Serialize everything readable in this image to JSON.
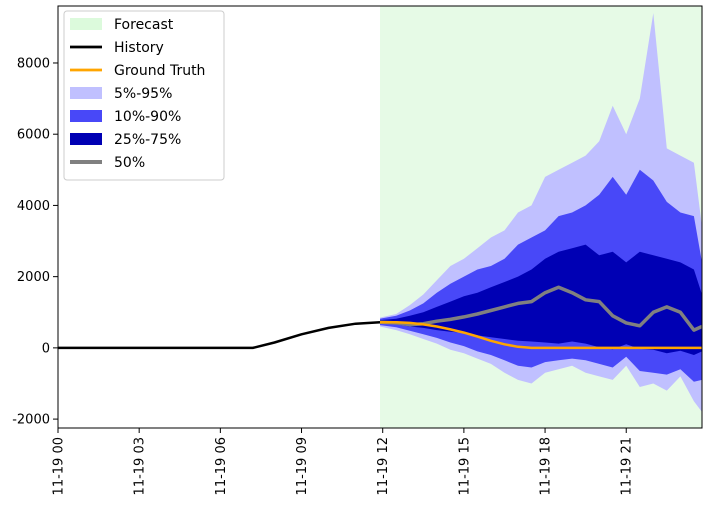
{
  "chart_data": {
    "type": "line",
    "title": "",
    "xlabel": "",
    "ylabel": "",
    "x_unit": "hours",
    "xlim": [
      0,
      23.8
    ],
    "ylim": [
      -2250,
      9600
    ],
    "grid": false,
    "legend_position": "top-left",
    "x_ticks": [
      {
        "value": 0,
        "label": "11-19 00"
      },
      {
        "value": 3,
        "label": "11-19 03"
      },
      {
        "value": 6,
        "label": "11-19 06"
      },
      {
        "value": 9,
        "label": "11-19 09"
      },
      {
        "value": 12,
        "label": "11-19 12"
      },
      {
        "value": 15,
        "label": "11-19 15"
      },
      {
        "value": 18,
        "label": "11-19 18"
      },
      {
        "value": 21,
        "label": "11-19 21"
      }
    ],
    "y_ticks": [
      {
        "value": -2000,
        "label": "-2000"
      },
      {
        "value": 0,
        "label": "0"
      },
      {
        "value": 2000,
        "label": "2000"
      },
      {
        "value": 4000,
        "label": "4000"
      },
      {
        "value": 6000,
        "label": "6000"
      },
      {
        "value": 8000,
        "label": "8000"
      }
    ],
    "forecast_region": {
      "name": "Forecast",
      "x_start": 11.9,
      "x_end": 23.8,
      "color": "#e6fae6"
    },
    "legend": [
      {
        "name": "Forecast",
        "kind": "patch",
        "color": "#dcfadc"
      },
      {
        "name": "History",
        "kind": "line",
        "color": "#000000"
      },
      {
        "name": "Ground Truth",
        "kind": "line",
        "color": "#ffa500"
      },
      {
        "name": "5%-95%",
        "kind": "patch",
        "color": "#c0c0ff"
      },
      {
        "name": "10%-90%",
        "kind": "patch",
        "color": "#4848f8"
      },
      {
        "name": "25%-75%",
        "kind": "patch",
        "color": "#0000b4"
      },
      {
        "name": "50%",
        "kind": "line",
        "color": "#808080"
      }
    ],
    "history": {
      "name": "History",
      "color": "#000000",
      "x": [
        0,
        1,
        2,
        3,
        4,
        5,
        6,
        7,
        7.2,
        8,
        9,
        10,
        11,
        11.9
      ],
      "y": [
        0,
        0,
        0,
        0,
        0,
        0,
        0,
        0,
        0,
        150,
        380,
        560,
        680,
        720
      ]
    },
    "ground_truth": {
      "name": "Ground Truth",
      "color": "#ffa500",
      "x": [
        11.9,
        12.5,
        13,
        13.5,
        14,
        14.5,
        15,
        15.5,
        16,
        16.5,
        17,
        17.5,
        18,
        19,
        20,
        21,
        22,
        23,
        23.8
      ],
      "y": [
        720,
        720,
        700,
        660,
        600,
        520,
        430,
        320,
        200,
        100,
        30,
        0,
        0,
        0,
        0,
        0,
        0,
        0,
        0
      ]
    },
    "bands_x": [
      11.9,
      12.5,
      13,
      13.5,
      14,
      14.5,
      15,
      15.5,
      16,
      16.5,
      17,
      17.5,
      18,
      18.5,
      19,
      19.5,
      20,
      20.5,
      21,
      21.5,
      22,
      22.5,
      23,
      23.5,
      23.8
    ],
    "band_5_95": {
      "name": "5%-95%",
      "color": "#c0c0ff",
      "lower": [
        600,
        500,
        380,
        250,
        120,
        -50,
        -150,
        -300,
        -450,
        -700,
        -900,
        -1000,
        -700,
        -600,
        -500,
        -700,
        -800,
        -900,
        -500,
        -1100,
        -1000,
        -1200,
        -800,
        -1500,
        -1800
      ],
      "upper": [
        850,
        950,
        1200,
        1500,
        1900,
        2300,
        2500,
        2800,
        3100,
        3300,
        3800,
        4000,
        4800,
        5000,
        5200,
        5400,
        5800,
        6800,
        6000,
        7000,
        9400,
        5600,
        5400,
        5200,
        3400
      ]
    },
    "band_10_90": {
      "name": "10%-90%",
      "color": "#4848f8",
      "lower": [
        640,
        580,
        480,
        380,
        280,
        150,
        50,
        -100,
        -200,
        -350,
        -500,
        -550,
        -400,
        -350,
        -300,
        -350,
        -450,
        -550,
        -250,
        -650,
        -700,
        -750,
        -600,
        -950,
        -900
      ],
      "upper": [
        820,
        900,
        1050,
        1250,
        1550,
        1800,
        2000,
        2200,
        2300,
        2500,
        2900,
        3100,
        3300,
        3700,
        3800,
        4000,
        4300,
        4800,
        4300,
        5000,
        4700,
        4100,
        3800,
        3700,
        2400
      ]
    },
    "band_25_75": {
      "name": "25%-75%",
      "color": "#0000b4",
      "lower": [
        680,
        660,
        600,
        560,
        500,
        450,
        420,
        350,
        300,
        250,
        200,
        180,
        150,
        120,
        180,
        120,
        20,
        -40,
        100,
        -30,
        -50,
        -150,
        -80,
        -200,
        -100
      ],
      "upper": [
        780,
        820,
        900,
        1000,
        1150,
        1300,
        1450,
        1550,
        1700,
        1850,
        2000,
        2200,
        2500,
        2700,
        2800,
        2900,
        2600,
        2700,
        2400,
        2700,
        2600,
        2500,
        2400,
        2200,
        1500
      ]
    },
    "median": {
      "name": "50%",
      "color": "#808080",
      "x": [
        11.9,
        12.5,
        13,
        13.5,
        14,
        14.5,
        15,
        15.5,
        16,
        16.5,
        17,
        17.5,
        18,
        18.5,
        19,
        19.5,
        20,
        20.5,
        21,
        21.5,
        22,
        22.5,
        23,
        23.5,
        23.8
      ],
      "y": [
        720,
        700,
        650,
        680,
        750,
        800,
        870,
        950,
        1050,
        1150,
        1250,
        1300,
        1550,
        1700,
        1550,
        1350,
        1300,
        900,
        700,
        620,
        1000,
        1150,
        1000,
        500,
        600
      ]
    }
  }
}
